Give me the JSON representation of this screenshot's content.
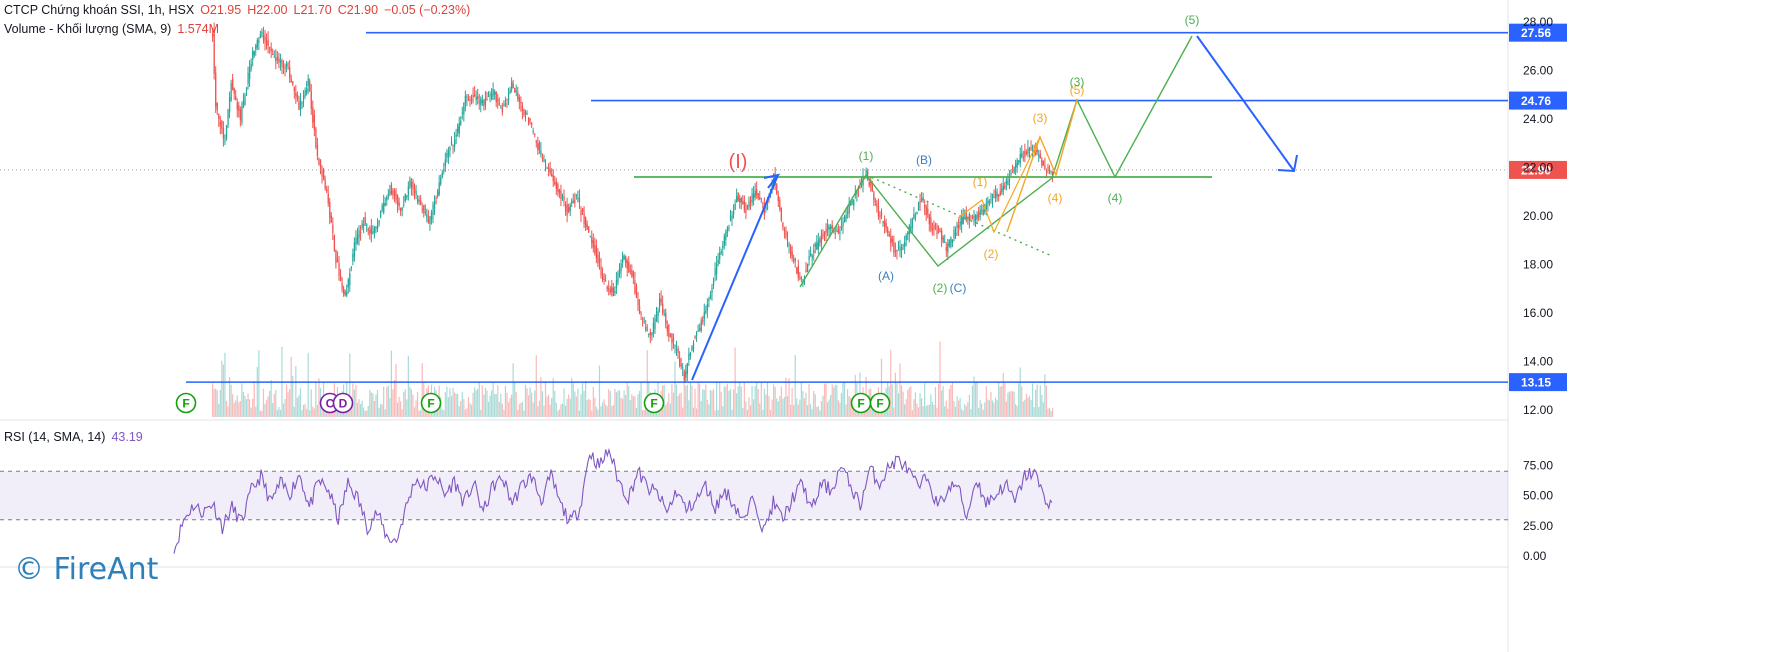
{
  "header": {
    "symbol": "CTCP Chứng khoán SSI, 1h, HSX",
    "open": "O21.95",
    "high": "H22.00",
    "low": "L21.70",
    "close": "C21.90",
    "change": "−0.05 (−0.23%)",
    "volume_label": "Volume - Khối lượng (SMA, 9)",
    "volume_value": "1.574M"
  },
  "rsi_header": {
    "label": "RSI (14, SMA, 14)",
    "value": "43.19"
  },
  "watermark": "© FireAnt",
  "colors": {
    "up": "#26a69a",
    "down": "#ef5350",
    "blue": "#2962ff",
    "green": "#4caf50",
    "orange": "#f5a623",
    "rsi": "#7e57c2",
    "marker": "#13a10e",
    "sky": "#3d7ebf"
  },
  "chart_data": [
    {
      "type": "candlestick",
      "y_axis": {
        "min": 12,
        "max": 28,
        "ticks": [
          "12.00",
          "14.00",
          "16.00",
          "18.00",
          "20.00",
          "22.00",
          "24.00",
          "26.00",
          "28.00"
        ]
      },
      "price_path": [
        [
          0,
          27.5
        ],
        [
          2,
          24.5
        ],
        [
          8,
          23.0
        ],
        [
          12,
          25.5
        ],
        [
          18,
          24.0
        ],
        [
          26,
          26.8
        ],
        [
          32,
          27.5
        ],
        [
          40,
          26.5
        ],
        [
          48,
          26.2
        ],
        [
          56,
          24.5
        ],
        [
          62,
          25.5
        ],
        [
          68,
          22.5
        ],
        [
          74,
          21.0
        ],
        [
          80,
          18.2
        ],
        [
          86,
          16.6
        ],
        [
          92,
          18.8
        ],
        [
          98,
          19.8
        ],
        [
          104,
          19.2
        ],
        [
          110,
          20.3
        ],
        [
          116,
          21.2
        ],
        [
          122,
          20.2
        ],
        [
          128,
          21.4
        ],
        [
          134,
          20.6
        ],
        [
          140,
          19.8
        ],
        [
          146,
          21.0
        ],
        [
          152,
          22.5
        ],
        [
          158,
          23.3
        ],
        [
          164,
          24.8
        ],
        [
          170,
          24.9
        ],
        [
          176,
          24.6
        ],
        [
          182,
          25.1
        ],
        [
          188,
          24.4
        ],
        [
          194,
          25.4
        ],
        [
          200,
          24.6
        ],
        [
          206,
          23.8
        ],
        [
          212,
          22.7
        ],
        [
          218,
          21.8
        ],
        [
          224,
          21.1
        ],
        [
          230,
          20.2
        ],
        [
          236,
          20.8
        ],
        [
          242,
          19.6
        ],
        [
          248,
          18.6
        ],
        [
          254,
          17.3
        ],
        [
          260,
          16.8
        ],
        [
          266,
          18.3
        ],
        [
          272,
          17.6
        ],
        [
          278,
          15.8
        ],
        [
          284,
          15.0
        ],
        [
          290,
          16.5
        ],
        [
          296,
          15.2
        ],
        [
          302,
          14.2
        ],
        [
          306,
          13.4
        ],
        [
          312,
          14.9
        ],
        [
          318,
          15.7
        ],
        [
          322,
          16.6
        ],
        [
          328,
          18.3
        ],
        [
          334,
          19.4
        ],
        [
          340,
          20.9
        ],
        [
          346,
          20.3
        ],
        [
          352,
          21.0
        ],
        [
          358,
          20.2
        ],
        [
          364,
          21.6
        ],
        [
          370,
          19.5
        ],
        [
          376,
          18.3
        ],
        [
          382,
          17.3
        ],
        [
          388,
          18.4
        ],
        [
          394,
          19.0
        ],
        [
          400,
          19.6
        ],
        [
          406,
          19.3
        ],
        [
          412,
          20.2
        ],
        [
          418,
          21.0
        ],
        [
          424,
          21.8
        ],
        [
          430,
          20.4
        ],
        [
          436,
          19.6
        ],
        [
          442,
          18.6
        ],
        [
          448,
          18.8
        ],
        [
          454,
          19.8
        ],
        [
          460,
          20.8
        ],
        [
          466,
          19.6
        ],
        [
          472,
          19.3
        ],
        [
          476,
          18.6
        ],
        [
          482,
          19.4
        ],
        [
          488,
          20.0
        ],
        [
          494,
          19.9
        ],
        [
          500,
          20.3
        ],
        [
          506,
          20.8
        ],
        [
          512,
          21.0
        ],
        [
          518,
          21.8
        ],
        [
          524,
          22.4
        ],
        [
          530,
          22.8
        ],
        [
          536,
          22.5
        ],
        [
          540,
          22.0
        ],
        [
          545,
          21.8
        ]
      ],
      "horizontal_levels": [
        {
          "price": 27.56,
          "label": "27.56",
          "color": "#2962ff"
        },
        {
          "price": 24.76,
          "label": "24.76",
          "color": "#2962ff"
        },
        {
          "price": 13.15,
          "label": "13.15",
          "color": "#2962ff"
        },
        {
          "price": 21.9,
          "label": "21.90",
          "color": "#ef5350"
        }
      ],
      "annotations": [
        {
          "text": "(I)",
          "color": "#ef5350"
        },
        {
          "text": "(1)",
          "color": "#4caf50"
        },
        {
          "text": "(B)",
          "color": "#3d7ebf"
        },
        {
          "text": "(A)",
          "color": "#3d7ebf"
        },
        {
          "text": "(2)",
          "color": "#4caf50"
        },
        {
          "text": "(C)",
          "color": "#3d7ebf"
        },
        {
          "text": "(1)",
          "color": "#f5a623"
        },
        {
          "text": "(2)",
          "color": "#f5a623"
        },
        {
          "text": "(3)",
          "color": "#f5a623"
        },
        {
          "text": "(4)",
          "color": "#f5a623"
        },
        {
          "text": "(5)",
          "color": "#f5a623"
        },
        {
          "text": "(3)",
          "color": "#4caf50"
        },
        {
          "text": "(4)",
          "color": "#4caf50"
        },
        {
          "text": "(5)",
          "color": "#4caf50"
        }
      ],
      "event_markers": [
        "F",
        "C",
        "D",
        "F",
        "F",
        "F",
        "F"
      ]
    },
    {
      "type": "line",
      "name": "RSI (14, SMA, 14)",
      "y_axis": {
        "min": 0,
        "max": 100,
        "ticks": [
          "0.00",
          "25.00",
          "50.00",
          "75.00"
        ]
      },
      "band": [
        30,
        70
      ],
      "values_path": [
        [
          0,
          4
        ],
        [
          6,
          30
        ],
        [
          12,
          42
        ],
        [
          18,
          36
        ],
        [
          24,
          44
        ],
        [
          30,
          24
        ],
        [
          36,
          40
        ],
        [
          42,
          28
        ],
        [
          48,
          54
        ],
        [
          54,
          66
        ],
        [
          60,
          44
        ],
        [
          66,
          60
        ],
        [
          72,
          52
        ],
        [
          78,
          68
        ],
        [
          84,
          40
        ],
        [
          90,
          62
        ],
        [
          96,
          54
        ],
        [
          102,
          30
        ],
        [
          108,
          60
        ],
        [
          114,
          48
        ],
        [
          120,
          24
        ],
        [
          126,
          36
        ],
        [
          132,
          16
        ],
        [
          138,
          12
        ],
        [
          144,
          40
        ],
        [
          150,
          64
        ],
        [
          156,
          56
        ],
        [
          162,
          68
        ],
        [
          168,
          50
        ],
        [
          174,
          62
        ],
        [
          180,
          44
        ],
        [
          186,
          60
        ],
        [
          192,
          36
        ],
        [
          198,
          58
        ],
        [
          204,
          64
        ],
        [
          210,
          44
        ],
        [
          216,
          58
        ],
        [
          222,
          66
        ],
        [
          228,
          46
        ],
        [
          234,
          66
        ],
        [
          240,
          42
        ],
        [
          246,
          28
        ],
        [
          252,
          40
        ],
        [
          258,
          86
        ],
        [
          264,
          74
        ],
        [
          270,
          88
        ],
        [
          276,
          62
        ],
        [
          282,
          48
        ],
        [
          288,
          70
        ],
        [
          294,
          56
        ],
        [
          300,
          52
        ],
        [
          306,
          36
        ],
        [
          312,
          54
        ],
        [
          318,
          38
        ],
        [
          324,
          46
        ],
        [
          330,
          58
        ],
        [
          336,
          40
        ],
        [
          342,
          54
        ],
        [
          348,
          42
        ],
        [
          354,
          28
        ],
        [
          360,
          50
        ],
        [
          366,
          20
        ],
        [
          372,
          44
        ],
        [
          378,
          30
        ],
        [
          384,
          48
        ],
        [
          390,
          60
        ],
        [
          396,
          38
        ],
        [
          402,
          60
        ],
        [
          408,
          54
        ],
        [
          414,
          74
        ],
        [
          420,
          58
        ],
        [
          426,
          42
        ],
        [
          432,
          72
        ],
        [
          438,
          60
        ],
        [
          444,
          74
        ],
        [
          450,
          80
        ],
        [
          456,
          70
        ],
        [
          462,
          56
        ],
        [
          468,
          66
        ],
        [
          474,
          40
        ],
        [
          480,
          54
        ],
        [
          486,
          60
        ],
        [
          492,
          32
        ],
        [
          498,
          64
        ],
        [
          504,
          44
        ],
        [
          510,
          50
        ],
        [
          516,
          60
        ],
        [
          522,
          44
        ],
        [
          528,
          66
        ],
        [
          534,
          70
        ],
        [
          540,
          48
        ],
        [
          545,
          43
        ]
      ]
    }
  ]
}
